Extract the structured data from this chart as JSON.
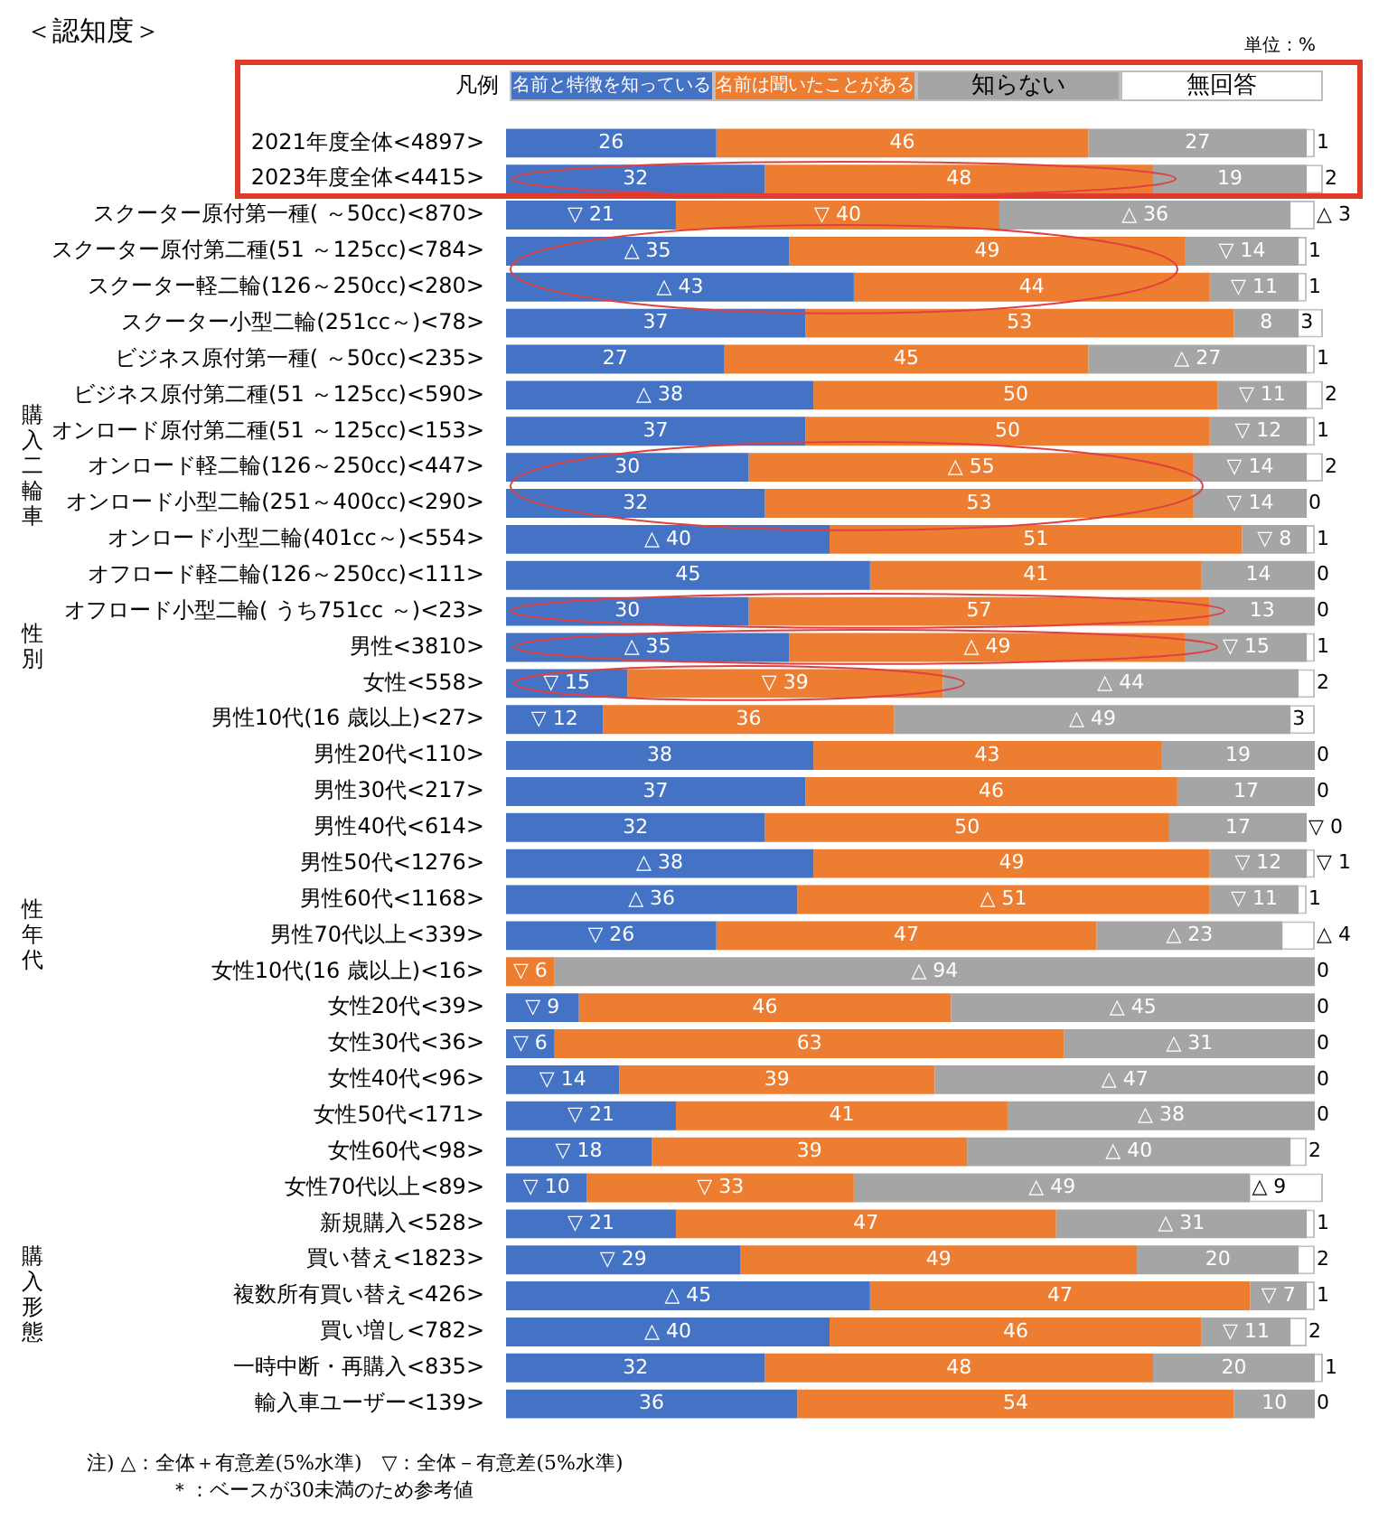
{
  "chart_data": {
    "type": "bar",
    "title": "＜認知度＞",
    "subtitle": "単位：%",
    "orientation": "horizontal",
    "stacked": true,
    "legend": "top",
    "legend_title": "凡例",
    "grid": false,
    "tick_labels": "y",
    "xlim": [
      0,
      101
    ],
    "categories": [
      "2021年度全体<4897>",
      "2023年度全体<4415>",
      "スクーター原付第一種( ～50cc)<870>",
      "スクーター原付第二種(51 ～125cc)<784>",
      "スクーター軽二輪(126～250cc)<280>",
      "スクーター小型二輪(251cc～)<78>",
      "ビジネス原付第一種( ～50cc)<235>",
      "ビジネス原付第二種(51 ～125cc)<590>",
      "オンロード原付第二種(51 ～125cc)<153>",
      "オンロード軽二輪(126～250cc)<447>",
      "オンロード小型二輪(251～400cc)<290>",
      "オンロード小型二輪(401cc～)<554>",
      "オフロード軽二輪(126～250cc)<111>",
      "オフロード小型二輪( うち751cc ～)<23>",
      "男性<3810>",
      "女性<558>",
      "男性10代(16 歳以上)<27>",
      "男性20代<110>",
      "男性30代<217>",
      "男性40代<614>",
      "男性50代<1276>",
      "男性60代<1168>",
      "男性70代以上<339>",
      "女性10代(16 歳以上)<16>",
      "女性20代<39>",
      "女性30代<36>",
      "女性40代<96>",
      "女性50代<171>",
      "女性60代<98>",
      "女性70代以上<89>",
      "新規購入<528>",
      "買い替え<1823>",
      "複数所有買い替え<426>",
      "買い増し<782>",
      "一時中断・再購入<835>",
      "輸入車ユーザー<139>"
    ],
    "series": [
      {
        "name": "名前と特徴を知っている",
        "color": "#4472c4",
        "values": [
          26,
          32,
          21,
          35,
          43,
          37,
          27,
          38,
          37,
          30,
          32,
          40,
          45,
          30,
          35,
          15,
          12,
          38,
          37,
          32,
          38,
          36,
          26,
          0,
          9,
          6,
          14,
          21,
          18,
          10,
          21,
          29,
          45,
          40,
          32,
          36
        ],
        "value_labels": [
          "26",
          "32",
          "▽ 21",
          "△ 35",
          "△ 43",
          "37",
          "27",
          "△ 38",
          "37",
          "30",
          "32",
          "△ 40",
          "45",
          "30",
          "△ 35",
          "▽ 15",
          "▽ 12",
          "38",
          "37",
          "32",
          "△ 38",
          "△ 36",
          "▽ 26",
          null,
          "▽ 9",
          "▽ 6",
          "▽ 14",
          "▽ 21",
          "▽ 18",
          "▽ 10",
          "▽ 21",
          "▽ 29",
          "△ 45",
          "△ 40",
          "32",
          "36"
        ]
      },
      {
        "name": "名前は聞いたことがある",
        "color": "#ed7d31",
        "values": [
          46,
          48,
          40,
          49,
          44,
          53,
          45,
          50,
          50,
          55,
          53,
          51,
          41,
          57,
          49,
          39,
          36,
          43,
          46,
          50,
          49,
          51,
          47,
          6,
          46,
          63,
          39,
          41,
          39,
          33,
          47,
          49,
          47,
          46,
          48,
          54
        ],
        "value_labels": [
          "46",
          "48",
          "▽ 40",
          "49",
          "44",
          "53",
          "45",
          "50",
          "50",
          "△ 55",
          "53",
          "51",
          "41",
          "57",
          "△ 49",
          "▽ 39",
          "36",
          "43",
          "46",
          "50",
          "49",
          "△ 51",
          "47",
          "▽ 6",
          "46",
          "63",
          "39",
          "41",
          "39",
          "▽ 33",
          "47",
          "49",
          "47",
          "46",
          "48",
          "54"
        ]
      },
      {
        "name": "知らない",
        "color": "#a5a5a5",
        "values": [
          27,
          19,
          36,
          14,
          11,
          8,
          27,
          11,
          12,
          14,
          14,
          8,
          14,
          13,
          15,
          44,
          49,
          19,
          17,
          17,
          12,
          11,
          23,
          94,
          45,
          31,
          47,
          38,
          40,
          49,
          31,
          20,
          7,
          11,
          20,
          10
        ],
        "value_labels": [
          "27",
          "19",
          "△ 36",
          "▽ 14",
          "▽ 11",
          "8",
          "△ 27",
          "▽ 11",
          "▽ 12",
          "▽ 14",
          "▽ 14",
          "▽ 8",
          "14",
          "13",
          "▽ 15",
          "△ 44",
          "△ 49",
          "19",
          "17",
          "17",
          "▽ 12",
          "▽ 11",
          "△ 23",
          "△ 94",
          "△ 45",
          "△ 31",
          "△ 47",
          "△ 38",
          "△ 40",
          "△ 49",
          "△ 31",
          "20",
          "▽ 7",
          "▽ 11",
          "20",
          "10"
        ]
      },
      {
        "name": "無回答",
        "color": "#ffffff",
        "values": [
          1,
          2,
          3,
          1,
          1,
          3,
          1,
          2,
          1,
          2,
          0,
          1,
          0,
          0,
          1,
          2,
          3,
          0,
          0,
          0,
          1,
          1,
          4,
          0,
          0,
          0,
          0,
          0,
          2,
          9,
          1,
          2,
          1,
          2,
          1,
          0
        ],
        "value_labels": [
          "1",
          "2",
          "△ 3",
          "1",
          "1",
          "3",
          "1",
          "2",
          "1",
          "2",
          "0",
          "1",
          "0",
          "0",
          "1",
          "2",
          "3",
          "0",
          "0",
          "▽ 0",
          "▽ 1",
          "1",
          "△ 4",
          "0",
          "0",
          "0",
          "0",
          "0",
          "2",
          "△ 9",
          "1",
          "2",
          "1",
          "2",
          "1",
          "0"
        ]
      }
    ],
    "annotations": [
      "購入二輪車",
      "性別",
      "性年代",
      "購入形態",
      "注) △：全体＋有意差(5%水準)　▽：全体－有意差(5%水準)",
      "＊：ベースが30未満のため参考値"
    ]
  }
}
